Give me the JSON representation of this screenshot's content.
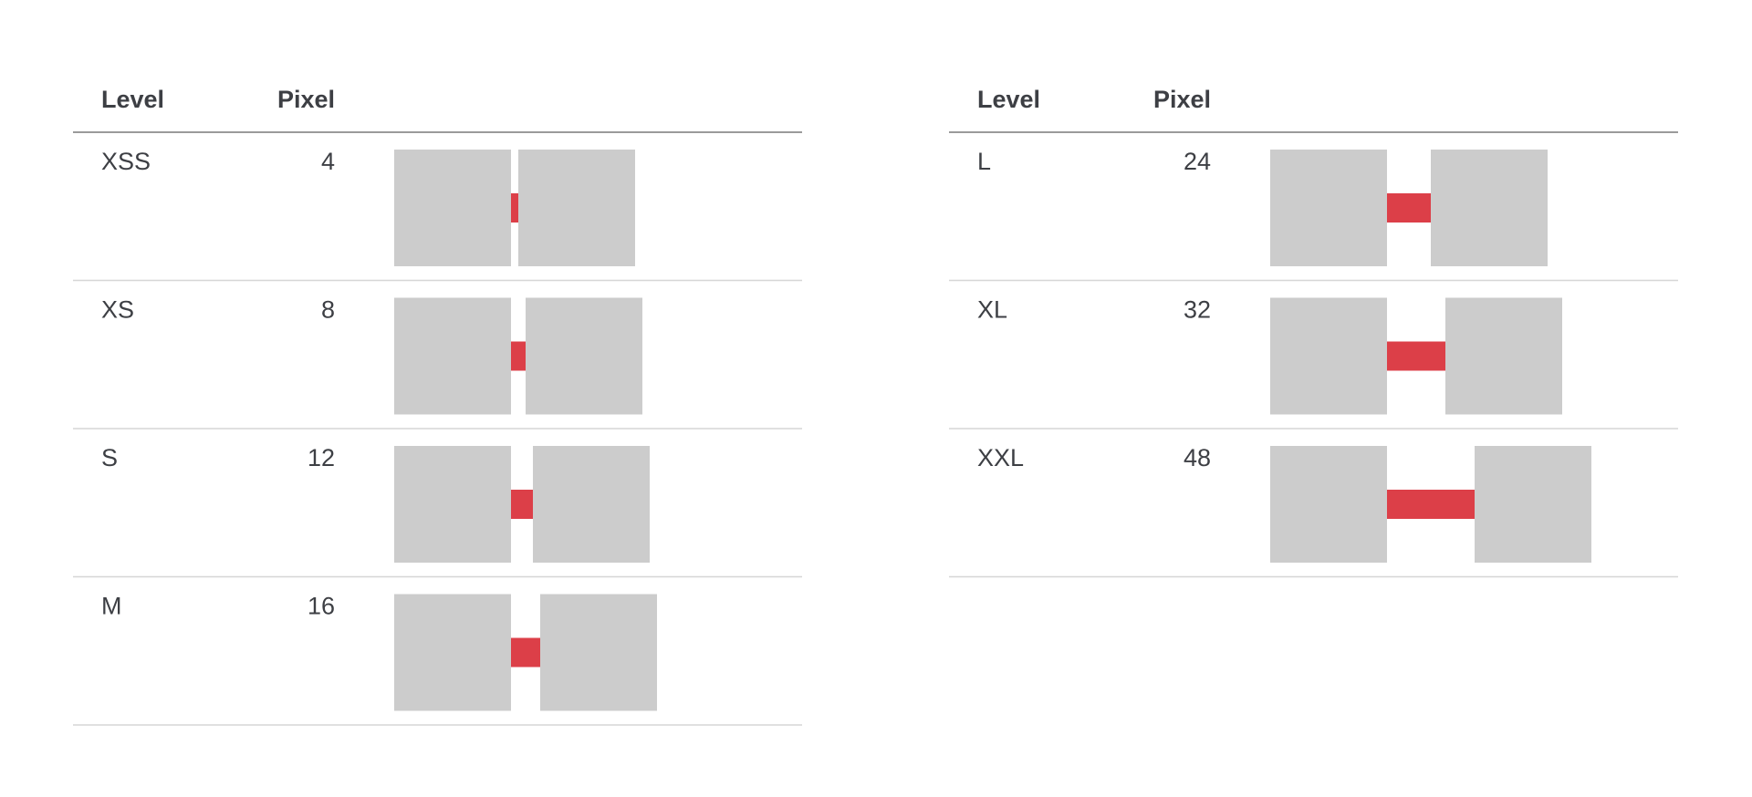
{
  "tables": [
    {
      "header": [
        "Level",
        "Pixel"
      ],
      "rows": [
        [
          "XSS",
          4
        ],
        [
          "XS",
          8
        ],
        [
          "S",
          12
        ],
        [
          "M",
          16
        ]
      ]
    },
    {
      "header": [
        "Level",
        "Pixel"
      ],
      "rows": [
        [
          "L",
          24
        ],
        [
          "XL",
          32
        ],
        [
          "XXL",
          48
        ]
      ]
    }
  ]
}
